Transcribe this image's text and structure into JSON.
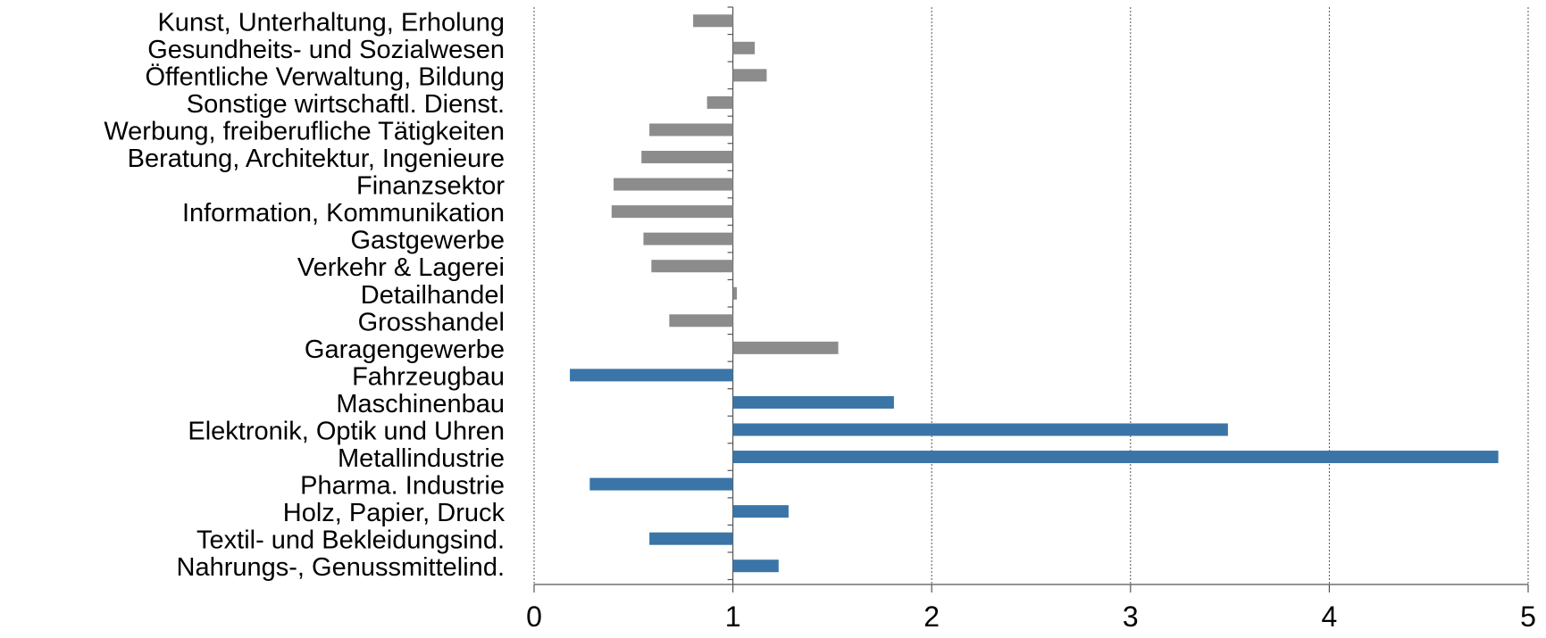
{
  "chart_data": {
    "type": "bar",
    "orientation": "horizontal",
    "title": "",
    "xlabel": "",
    "ylabel": "",
    "xlim": [
      0,
      5
    ],
    "baseline": 1,
    "x_ticks": [
      "0",
      "1",
      "2",
      "3",
      "4",
      "5"
    ],
    "grid": "vertical dotted",
    "legend": "none",
    "categories": [
      "Kunst, Unterhaltung, Erholung",
      "Gesundheits- und Sozialwesen",
      "Öffentliche Verwaltung, Bildung",
      "Sonstige wirtschaftl. Dienst.",
      "Werbung, freiberufliche Tätigkeiten",
      "Beratung, Architektur, Ingenieure",
      "Finanzsektor",
      "Information, Kommunikation",
      "Gastgewerbe",
      "Verkehr & Lagerei",
      "Detailhandel",
      "Grosshandel",
      "Garagengewerbe",
      "Fahrzeugbau",
      "Maschinenbau",
      "Elektronik, Optik und Uhren",
      "Metallindustrie",
      "Pharma. Industrie",
      "Holz, Papier, Druck",
      "Textil- und Bekleidungsind.",
      "Nahrungs-, Genussmittelind."
    ],
    "values": [
      0.8,
      1.11,
      1.17,
      0.87,
      0.58,
      0.54,
      0.4,
      0.39,
      0.55,
      0.59,
      1.02,
      0.68,
      1.53,
      0.18,
      1.81,
      3.49,
      4.85,
      0.28,
      1.28,
      0.58,
      1.23
    ],
    "colors": [
      "#8c8c8c",
      "#8c8c8c",
      "#8c8c8c",
      "#8c8c8c",
      "#8c8c8c",
      "#8c8c8c",
      "#8c8c8c",
      "#8c8c8c",
      "#8c8c8c",
      "#8c8c8c",
      "#8c8c8c",
      "#8c8c8c",
      "#8c8c8c",
      "#3b75a8",
      "#3b75a8",
      "#3b75a8",
      "#3b75a8",
      "#3b75a8",
      "#3b75a8",
      "#3b75a8",
      "#3b75a8"
    ]
  }
}
